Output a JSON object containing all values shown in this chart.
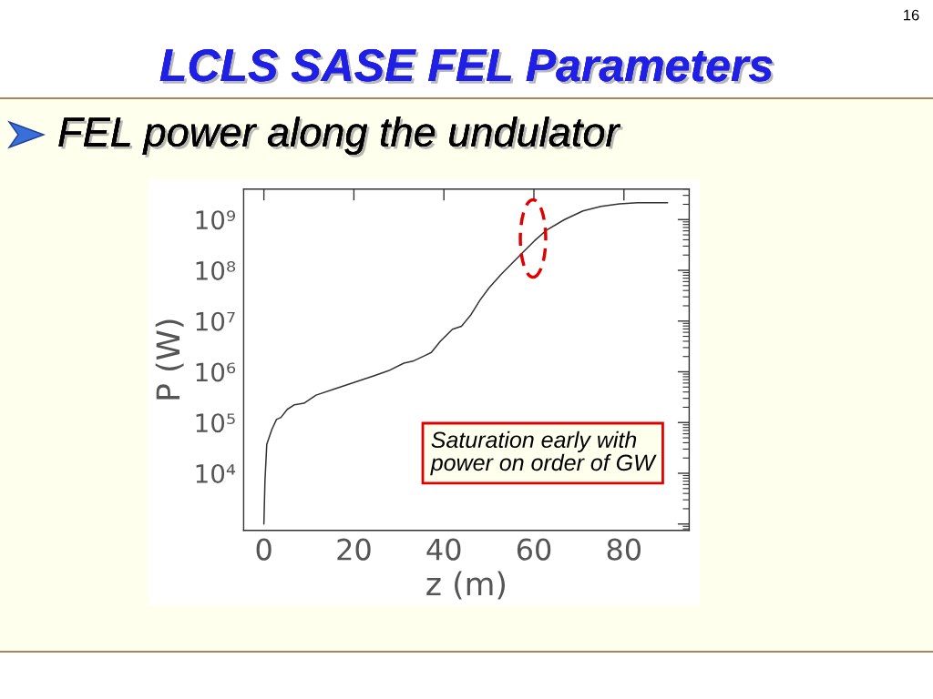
{
  "chart_data": {
    "type": "line",
    "title": "LCLS SASE FEL Parameters",
    "subtitle": "FEL power along the undulator",
    "xlabel": "z (m)",
    "ylabel": "P (W)",
    "annotations": [
      "16",
      "Saturation early with\npower on order of GW"
    ],
    "x": [
      0,
      0.24,
      0.64,
      1.1,
      1.8,
      2.8,
      3.8,
      5.2,
      6.8,
      8.9,
      11.6,
      15.6,
      19.7,
      24.4,
      27.7,
      31.1,
      33.1,
      35.8,
      37.2,
      39.2,
      41.9,
      43.9,
      45.9,
      48.0,
      50.0,
      52.7,
      55.4,
      57.4,
      60.1,
      62.8,
      66.8,
      70.9,
      74.9,
      79.0,
      83.0,
      89.7
    ],
    "series": [
      {
        "color": "#333333",
        "values": [
          1000,
          7000,
          37000,
          49000,
          74000,
          115000,
          126000,
          182000,
          224000,
          240000,
          347000,
          457000,
          603000,
          832000,
          1050000,
          1480000,
          1620000,
          2090000,
          2400000,
          3980000,
          6900000,
          7900000,
          12900000,
          25700000,
          44700000,
          83000000,
          145000000,
          219000000,
          380000000,
          620000000,
          1000000000,
          1480000000,
          1820000000,
          2040000000,
          2140000000,
          2140000000
        ]
      }
    ],
    "xlim": [
      -4.5,
      94.5
    ],
    "ylim": [
      750,
      4000000000
    ],
    "xticks": [
      0,
      20,
      40,
      60,
      80
    ],
    "yticks": [
      {
        "value": 1000,
        "label": null
      },
      {
        "value": 10000,
        "label": "10⁴"
      },
      {
        "value": 100000,
        "label": "10⁵"
      },
      {
        "value": 1000000,
        "label": "10⁶"
      },
      {
        "value": 10000000,
        "label": "10⁷"
      },
      {
        "value": 100000000,
        "label": "10⁸"
      },
      {
        "value": 1000000000,
        "label": "10⁹"
      }
    ],
    "log": true,
    "grid": false,
    "marker": "none",
    "line_style": "solid"
  }
}
